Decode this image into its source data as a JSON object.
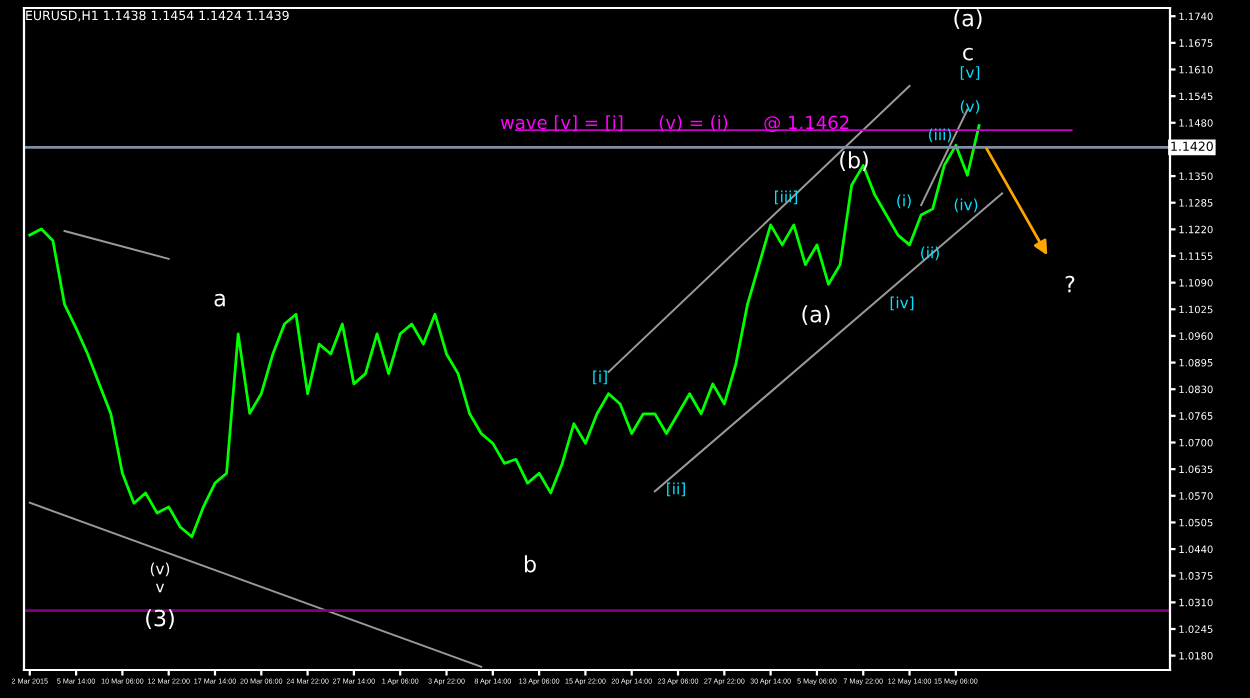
{
  "chart_data": {
    "type": "line",
    "title": "EURUSD,H1 1.1438 1.1454 1.1424 1.1439",
    "categories": [
      "2 Mar 2015",
      null,
      null,
      null,
      "5 Mar 14:00",
      null,
      null,
      null,
      "10 Mar 06:00",
      null,
      null,
      null,
      "12 Mar 22:00",
      null,
      null,
      null,
      "17 Mar 14:00",
      null,
      null,
      null,
      "20 Mar 06:00",
      null,
      null,
      null,
      "24 Mar 22:00",
      null,
      null,
      null,
      "27 Mar 14:00",
      null,
      null,
      null,
      "1 Apr 06:00",
      null,
      null,
      null,
      "3 Apr 22:00",
      null,
      null,
      null,
      "8 Apr 14:00",
      null,
      null,
      null,
      "13 Apr 06:00",
      null,
      null,
      null,
      "15 Apr 22:00",
      null,
      null,
      null,
      "20 Apr 14:00",
      null,
      null,
      null,
      "23 Apr 06:00",
      null,
      null,
      null,
      "27 Apr 22:00",
      null,
      null,
      null,
      "30 Apr 14:00",
      null,
      null,
      null,
      "5 May 06:00",
      null,
      null,
      null,
      "7 May 22:00",
      null,
      null,
      null,
      "12 May 14:00",
      null,
      null,
      null,
      "15 May 06:00",
      null,
      null,
      null,
      null,
      null,
      null,
      null,
      null,
      null,
      null,
      null,
      null,
      null,
      null,
      null,
      null,
      null,
      null
    ],
    "ylim": [
      1.0145,
      1.176
    ],
    "yticks": [
      {
        "value": 1.174,
        "label": "1.1740"
      },
      {
        "value": 1.1675,
        "label": "1.1675"
      },
      {
        "value": 1.161,
        "label": "1.1610"
      },
      {
        "value": 1.1545,
        "label": "1.1545"
      },
      {
        "value": 1.148,
        "label": "1.1480"
      },
      {
        "value": 1.135,
        "label": "1.1350"
      },
      {
        "value": 1.1285,
        "label": "1.1285"
      },
      {
        "value": 1.122,
        "label": "1.1220"
      },
      {
        "value": 1.1155,
        "label": "1.1155"
      },
      {
        "value": 1.109,
        "label": "1.1090"
      },
      {
        "value": 1.1025,
        "label": "1.1025"
      },
      {
        "value": 1.096,
        "label": "1.0960"
      },
      {
        "value": 1.0895,
        "label": "1.0895"
      },
      {
        "value": 1.083,
        "label": "1.0830"
      },
      {
        "value": 1.0765,
        "label": "1.0765"
      },
      {
        "value": 1.07,
        "label": "1.0700"
      },
      {
        "value": 1.0635,
        "label": "1.0635"
      },
      {
        "value": 1.057,
        "label": "1.0570"
      },
      {
        "value": 1.0505,
        "label": "1.0505"
      },
      {
        "value": 1.044,
        "label": "1.0440"
      },
      {
        "value": 1.0375,
        "label": "1.0375"
      },
      {
        "value": 1.031,
        "label": "1.0310"
      },
      {
        "value": 1.0245,
        "label": "1.0245"
      },
      {
        "value": 1.018,
        "label": "1.0180"
      }
    ],
    "grid": false,
    "series": [
      {
        "color": "#00ff00",
        "values": [
          1.1206,
          1.1221,
          1.1192,
          1.1037,
          1.0979,
          1.0916,
          1.0843,
          1.077,
          1.0625,
          1.0552,
          1.0577,
          1.0528,
          1.0543,
          1.0494,
          1.047,
          1.0543,
          1.0601,
          1.0625,
          1.0965,
          1.0771,
          1.0819,
          1.0916,
          1.0989,
          1.1013,
          1.0819,
          1.094,
          1.0916,
          1.0989,
          1.0843,
          1.0868,
          1.0965,
          1.0868,
          1.0965,
          1.0989,
          1.094,
          1.1013,
          1.0916,
          1.0868,
          1.077,
          1.0722,
          1.0698,
          1.0649,
          1.0659,
          1.0601,
          1.0625,
          1.0577,
          1.0649,
          1.0746,
          1.0698,
          1.077,
          1.0819,
          1.0794,
          1.0722,
          1.077,
          1.077,
          1.0722,
          1.077,
          1.0819,
          1.077,
          1.0843,
          1.0794,
          1.0892,
          1.1037,
          1.1134,
          1.1231,
          1.1182,
          1.1231,
          1.1134,
          1.1182,
          1.1086,
          1.1134,
          1.1328,
          1.1376,
          1.1304,
          1.1255,
          1.1206,
          1.1182,
          1.1255,
          1.127,
          1.1376,
          1.1425,
          1.1352,
          1.1473,
          null,
          null,
          null,
          null,
          null,
          null,
          null,
          null,
          null,
          null,
          null,
          null,
          null,
          null,
          null,
          null
        ]
      },
      {
        "type": "line",
        "color": "#9a9a9a",
        "values": [
          1.0553,
          null,
          null,
          null,
          null,
          null,
          null,
          null,
          null,
          null,
          null,
          null,
          null,
          null,
          null,
          null,
          null,
          null,
          null,
          null,
          null,
          null,
          null,
          null,
          null,
          null,
          null,
          null,
          null,
          null,
          null,
          null,
          null,
          null,
          null,
          null,
          null,
          null,
          null,
          1.0153,
          null,
          null,
          null,
          null,
          null,
          null,
          null,
          null,
          null,
          null,
          null,
          null,
          null,
          null,
          null,
          null,
          null,
          null,
          null,
          null,
          null,
          null,
          null,
          null,
          null,
          null,
          null,
          null,
          null,
          null,
          null,
          null,
          null,
          null,
          null,
          null,
          null,
          null,
          null,
          null,
          null,
          null,
          null,
          null,
          null,
          null,
          null,
          null,
          null,
          null,
          null,
          null,
          null,
          null,
          null,
          null,
          null,
          null,
          null
        ]
      },
      {
        "type": "line",
        "color": "#9a9a9a",
        "values": [
          null,
          null,
          null,
          1.1216,
          null,
          null,
          null,
          null,
          null,
          null,
          null,
          null,
          1.1148,
          null,
          null,
          null,
          null,
          null,
          null,
          null,
          null,
          null,
          null,
          null,
          null,
          null,
          null,
          null,
          null,
          null,
          null,
          null,
          null,
          null,
          null,
          null,
          null,
          null,
          null,
          null,
          null,
          null,
          null,
          null,
          null,
          null,
          null,
          null,
          null,
          null,
          null,
          null,
          null,
          null,
          null,
          null,
          null,
          null,
          null,
          null,
          null,
          null,
          null,
          null,
          null,
          null,
          null,
          null,
          null,
          null,
          null,
          null,
          null,
          null,
          null,
          null,
          null,
          null,
          null,
          null,
          null,
          null,
          null,
          null,
          null,
          null,
          null,
          null,
          null,
          null,
          null,
          null,
          null,
          null,
          null,
          null,
          null,
          null,
          null
        ]
      },
      {
        "type": "line",
        "color": "#9a9a9a",
        "values": [
          null,
          null,
          null,
          null,
          null,
          null,
          null,
          null,
          null,
          null,
          null,
          null,
          null,
          null,
          null,
          null,
          null,
          null,
          null,
          null,
          null,
          null,
          null,
          null,
          null,
          null,
          null,
          null,
          null,
          null,
          null,
          null,
          null,
          null,
          null,
          null,
          null,
          null,
          null,
          null,
          null,
          null,
          null,
          null,
          null,
          null,
          null,
          null,
          null,
          null,
          1.0872,
          null,
          null,
          null,
          null,
          null,
          null,
          null,
          null,
          null,
          null,
          null,
          null,
          null,
          null,
          null,
          null,
          null,
          null,
          null,
          null,
          null,
          null,
          null,
          null,
          null,
          1.157,
          null,
          null,
          null,
          null,
          null,
          null,
          null,
          null,
          null,
          null,
          null,
          null,
          null,
          null,
          null,
          null,
          null,
          null,
          null,
          null,
          null,
          null
        ]
      },
      {
        "type": "line",
        "color": "#9a9a9a",
        "values": [
          null,
          null,
          null,
          null,
          null,
          null,
          null,
          null,
          null,
          null,
          null,
          null,
          null,
          null,
          null,
          null,
          null,
          null,
          null,
          null,
          null,
          null,
          null,
          null,
          null,
          null,
          null,
          null,
          null,
          null,
          null,
          null,
          null,
          null,
          null,
          null,
          null,
          null,
          null,
          null,
          null,
          null,
          null,
          null,
          null,
          null,
          null,
          null,
          null,
          null,
          null,
          null,
          null,
          null,
          1.0581,
          null,
          null,
          null,
          null,
          null,
          null,
          null,
          null,
          null,
          null,
          null,
          null,
          null,
          null,
          null,
          null,
          null,
          null,
          null,
          null,
          null,
          null,
          null,
          null,
          null,
          null,
          null,
          null,
          null,
          1.1308,
          null,
          null,
          null,
          null,
          null,
          null,
          null,
          null,
          null,
          null,
          null,
          null,
          null,
          null
        ]
      },
      {
        "type": "line",
        "color": "#9a9a9a",
        "values": [
          null,
          null,
          null,
          null,
          null,
          null,
          null,
          null,
          null,
          null,
          null,
          null,
          null,
          null,
          null,
          null,
          null,
          null,
          null,
          null,
          null,
          null,
          null,
          null,
          null,
          null,
          null,
          null,
          null,
          null,
          null,
          null,
          null,
          null,
          null,
          null,
          null,
          null,
          null,
          null,
          null,
          null,
          null,
          null,
          null,
          null,
          null,
          null,
          null,
          null,
          null,
          null,
          null,
          null,
          null,
          null,
          null,
          null,
          null,
          null,
          null,
          null,
          null,
          null,
          null,
          null,
          null,
          null,
          null,
          null,
          null,
          null,
          null,
          null,
          null,
          null,
          null,
          1.1279,
          null,
          null,
          null,
          1.1512,
          null,
          null,
          null,
          null,
          null,
          null,
          null,
          null,
          null,
          null,
          null,
          null,
          null,
          null,
          null,
          null,
          null
        ]
      },
      {
        "type": "line",
        "color": "#cc00cc",
        "values": [
          null,
          null,
          null,
          null,
          null,
          null,
          null,
          null,
          null,
          null,
          null,
          null,
          null,
          null,
          null,
          null,
          null,
          null,
          null,
          null,
          null,
          null,
          null,
          null,
          null,
          null,
          null,
          null,
          null,
          null,
          null,
          null,
          null,
          null,
          null,
          null,
          null,
          null,
          null,
          null,
          null,
          null,
          1.1462,
          null,
          null,
          null,
          null,
          null,
          null,
          null,
          null,
          null,
          null,
          null,
          null,
          null,
          null,
          null,
          null,
          null,
          null,
          null,
          null,
          null,
          null,
          null,
          null,
          null,
          null,
          null,
          null,
          null,
          null,
          null,
          null,
          null,
          null,
          null,
          null,
          null,
          null,
          null,
          null,
          null,
          null,
          null,
          null,
          null,
          null,
          null,
          1.1462,
          null,
          null,
          null,
          null,
          null,
          null,
          null,
          null
        ]
      }
    ],
    "ref_lines": [
      {
        "axis": "y",
        "value": 1.142,
        "label": "1.1420",
        "color": "#8090a0"
      },
      {
        "axis": "y",
        "value": 1.029,
        "color": "#800080"
      }
    ],
    "annotations": [
      "wave [v] = [i]      (v) = (i)      @ 1.1462",
      "(a)",
      "c",
      {
        "text": "[v]",
        "y": 1.1473
      },
      {
        "text": "(v)",
        "y": 1.1473
      },
      "(iii)",
      "(b)",
      "[iii]",
      "(i)",
      "(iv)",
      "(ii)",
      "[iv]",
      "(a)",
      "?",
      "a",
      "[i]",
      "[ii]",
      "b",
      "(v)",
      "v",
      "(3)"
    ]
  }
}
